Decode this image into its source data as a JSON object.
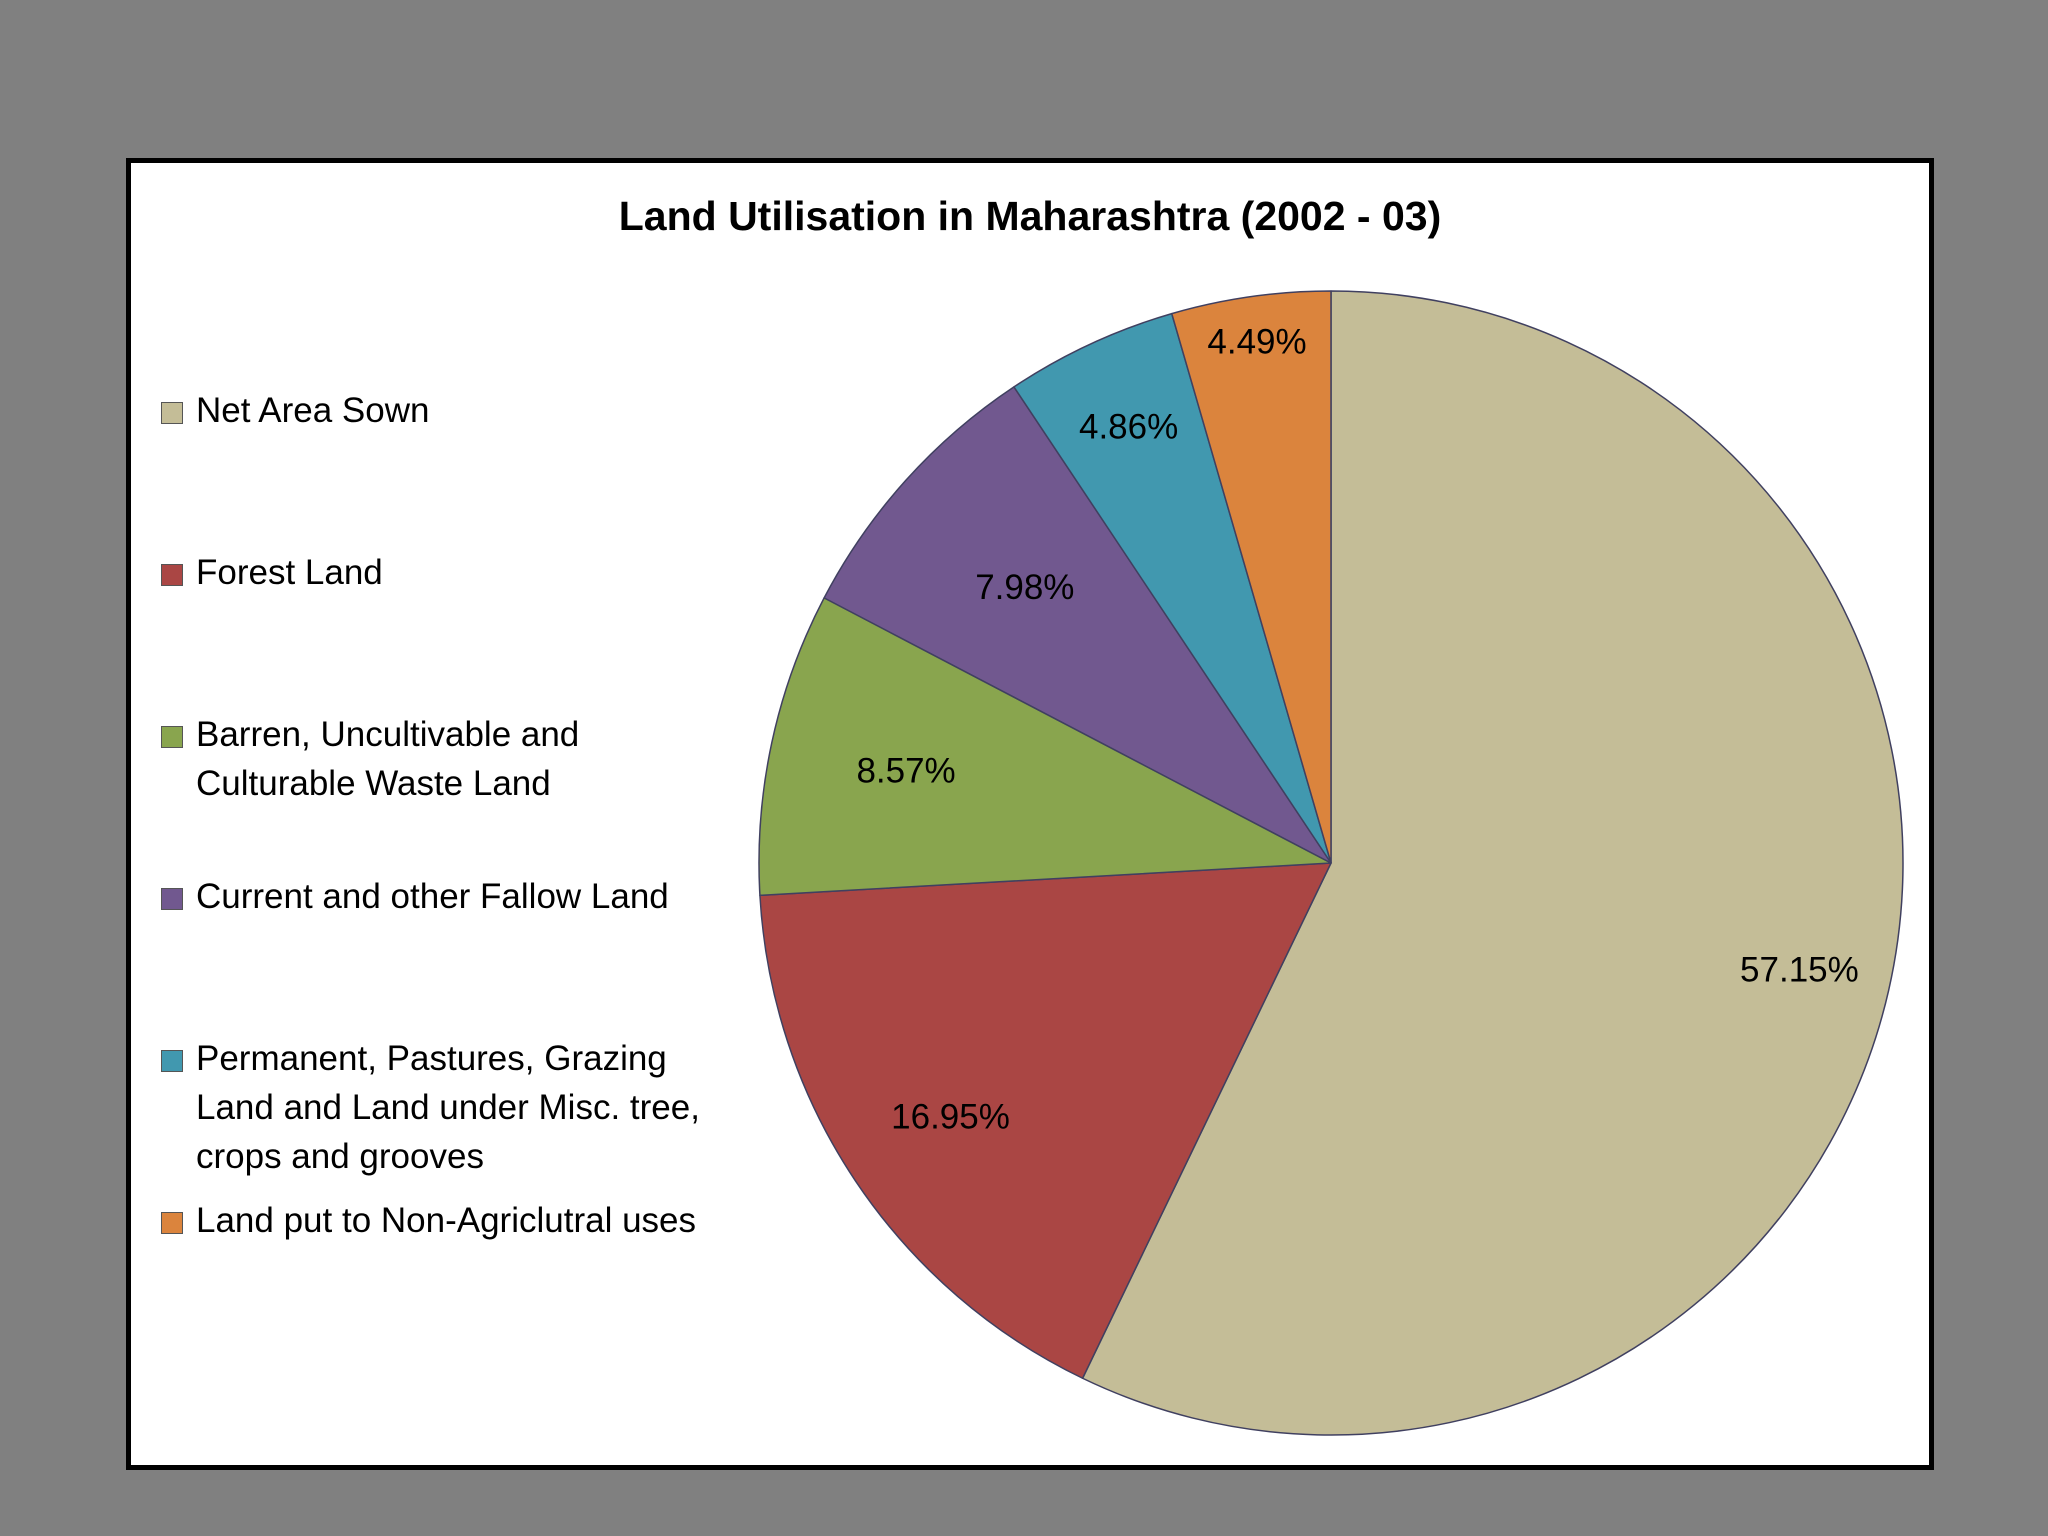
{
  "chart_data": {
    "type": "pie",
    "title": "Land Utilisation in Maharashtra (2002 - 03)",
    "legend_position": "left",
    "slices": [
      {
        "name": "Net Area Sown",
        "value": 57.15,
        "label": "57.15%",
        "color": "#C4BD97"
      },
      {
        "name": "Forest Land",
        "value": 16.95,
        "label": "16.95%",
        "color": "#AA4644"
      },
      {
        "name": "Barren, Uncultivable and Culturable Waste Land",
        "value": 8.57,
        "label": "8.57%",
        "color": "#89A54E"
      },
      {
        "name": "Current and other Fallow Land",
        "value": 7.98,
        "label": "7.98%",
        "color": "#71588F"
      },
      {
        "name": "Permanent, Pastures, Grazing Land and Land under Misc. tree, crops and grooves",
        "value": 4.86,
        "label": "4.86%",
        "color": "#4198AF"
      },
      {
        "name": "Land put to Non-Agriclutral uses",
        "value": 4.49,
        "label": "4.49%",
        "color": "#DB843D"
      }
    ]
  }
}
